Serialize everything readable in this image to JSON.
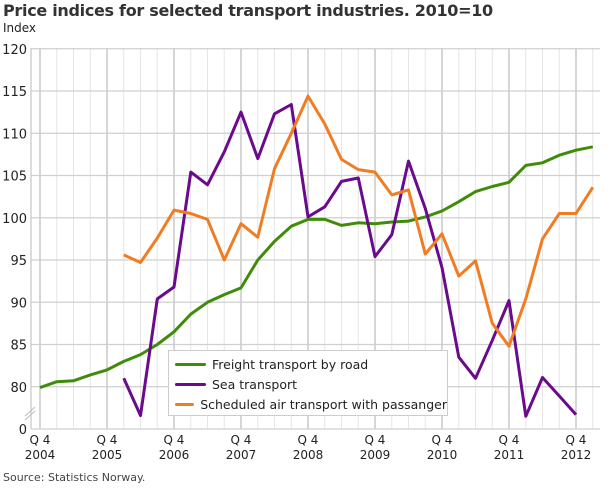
{
  "chart_data": {
    "type": "line",
    "title": "Price indices for selected transport industries. 2010=10",
    "ylabel": "Index",
    "xlabel": "",
    "source": "Source: Statistics Norway.",
    "ylim": [
      0,
      120
    ],
    "y_axis_break": "between 0 and 80",
    "yticks": [
      "0",
      "80",
      "85",
      "90",
      "95",
      "100",
      "105",
      "110",
      "115",
      "120"
    ],
    "grid": true,
    "legend_position": "bottom-center",
    "x": [
      "2004Q4",
      "2005Q1",
      "2005Q2",
      "2005Q3",
      "2005Q4",
      "2006Q1",
      "2006Q2",
      "2006Q3",
      "2006Q4",
      "2007Q1",
      "2007Q2",
      "2007Q3",
      "2007Q4",
      "2008Q1",
      "2008Q2",
      "2008Q3",
      "2008Q4",
      "2009Q1",
      "2009Q2",
      "2009Q3",
      "2009Q4",
      "2010Q1",
      "2010Q2",
      "2010Q3",
      "2010Q4",
      "2011Q1",
      "2011Q2",
      "2011Q3",
      "2011Q4",
      "2012Q1",
      "2012Q2",
      "2012Q3",
      "2012Q4",
      "2013Q1"
    ],
    "xticks": [
      {
        "q": "Q 4",
        "year": "2004"
      },
      {
        "q": "Q 4",
        "year": "2005"
      },
      {
        "q": "Q 4",
        "year": "2006"
      },
      {
        "q": "Q 4",
        "year": "2007"
      },
      {
        "q": "Q 4",
        "year": "2008"
      },
      {
        "q": "Q 4",
        "year": "2009"
      },
      {
        "q": "Q 4",
        "year": "2010"
      },
      {
        "q": "Q 4",
        "year": "2011"
      },
      {
        "q": "Q 4",
        "year": "2012"
      }
    ],
    "series": [
      {
        "name": "Freight transport by road",
        "color": "#3f8c0a",
        "values": [
          79.9,
          80.6,
          80.7,
          81.4,
          82.0,
          83.0,
          83.8,
          85.0,
          86.5,
          88.6,
          90.0,
          90.9,
          91.7,
          95.0,
          97.2,
          99.0,
          99.8,
          99.8,
          99.1,
          99.4,
          99.3,
          99.5,
          99.6,
          100.1,
          100.8,
          101.9,
          103.1,
          103.7,
          104.2,
          106.2,
          106.5,
          107.4,
          108.0,
          108.4
        ]
      },
      {
        "name": "Sea transport",
        "color": "#6a0a8c",
        "values": [
          null,
          null,
          null,
          null,
          null,
          81.0,
          76.6,
          90.4,
          91.8,
          105.4,
          103.9,
          107.8,
          112.5,
          107.0,
          112.3,
          113.4,
          100.1,
          101.3,
          104.3,
          104.7,
          95.4,
          98.0,
          106.7,
          101.1,
          94.1,
          83.5,
          81.0,
          85.5,
          90.2,
          76.5,
          81.1,
          78.9,
          76.7,
          null
        ]
      },
      {
        "name": "Scheduled air transport with passanger",
        "color": "#f07d23",
        "values": [
          null,
          null,
          null,
          null,
          null,
          95.6,
          94.7,
          97.6,
          100.9,
          100.5,
          99.8,
          95.0,
          99.3,
          97.7,
          105.8,
          110.0,
          114.4,
          111.1,
          106.9,
          105.7,
          105.4,
          102.7,
          103.3,
          95.7,
          98.1,
          93.1,
          94.9,
          87.5,
          84.8,
          90.4,
          97.5,
          100.5,
          100.5,
          103.6
        ]
      }
    ]
  }
}
